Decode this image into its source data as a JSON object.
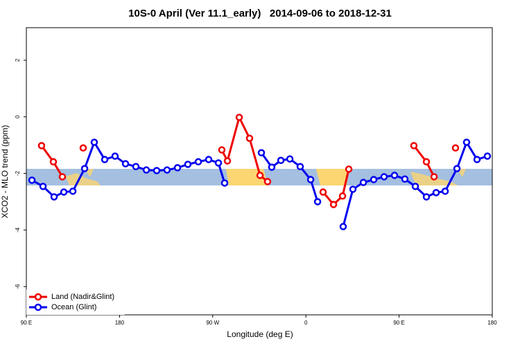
{
  "chart_data": {
    "type": "line",
    "title": "10S-0 April (Ver 11.1_early)   2014-09-06 to 2018-12-31",
    "xlabel": "Longitude (deg E)",
    "ylabel": "XCO2 - MLO trend (ppm)",
    "xlim": [
      90,
      540
    ],
    "ylim": [
      -7,
      3.15
    ],
    "xticks": [
      {
        "value": 90,
        "label": "90 E"
      },
      180,
      {
        "value": 270,
        "label": "90 W"
      },
      {
        "value": 360,
        "label": "0"
      },
      {
        "value": 450,
        "label": "90 E"
      },
      {
        "value": 540,
        "label": "180"
      }
    ],
    "yticks": [
      2,
      0,
      -2,
      -4,
      -6
    ],
    "legend": "bottom-left",
    "series": [
      {
        "name": "Land (Nadir&Glint)",
        "color": "#ee0000",
        "x": [
          104.7,
          116.1,
          124.8,
          null,
          144.9,
          null,
          278.8,
          284.2,
          295.6,
          305.6,
          315.7,
          323,
          null,
          376.6,
          386.7,
          395.4,
          401.4,
          null,
          464.3,
          476.4,
          483.8,
          null,
          504.5
        ],
        "values": [
          -1.02,
          -1.59,
          -2.12,
          null,
          -1.1,
          null,
          -1.17,
          -1.56,
          -0.02,
          -0.76,
          -2.07,
          -2.29,
          null,
          -2.66,
          -3.1,
          -2.8,
          -1.85,
          null,
          -1.02,
          -1.59,
          -2.12,
          null,
          -1.1
        ]
      },
      {
        "name": "Ocean (Glint)",
        "color": "#0000ee",
        "x": [
          95.4,
          106.1,
          116.8,
          126.2,
          134.9,
          146.3,
          155.6,
          165.7,
          175.7,
          185.8,
          195.8,
          205.9,
          215.9,
          225.9,
          236,
          246,
          256.1,
          266.1,
          275.5,
          281.5,
          null,
          317,
          327,
          335.8,
          344.5,
          354.5,
          364.6,
          371.3,
          null,
          396,
          405.4,
          415.5,
          425.5,
          435.5,
          445.6,
          455.6,
          465.7,
          476.4,
          485.8,
          494.5,
          505.9,
          515.2,
          525.3,
          535.3
        ],
        "values": [
          -2.24,
          -2.46,
          -2.83,
          -2.66,
          -2.63,
          -1.83,
          -0.9,
          -1.51,
          -1.39,
          -1.66,
          -1.76,
          -1.88,
          -1.9,
          -1.88,
          -1.8,
          -1.68,
          -1.59,
          -1.51,
          -1.63,
          -2.34,
          null,
          -1.27,
          -1.78,
          -1.54,
          -1.49,
          -1.76,
          -2.22,
          -3.0,
          null,
          -3.88,
          -2.56,
          -2.32,
          -2.22,
          -2.12,
          -2.07,
          -2.2,
          -2.46,
          -2.83,
          -2.68,
          -2.63,
          -1.83,
          -0.9,
          -1.51,
          -1.39
        ]
      }
    ]
  }
}
